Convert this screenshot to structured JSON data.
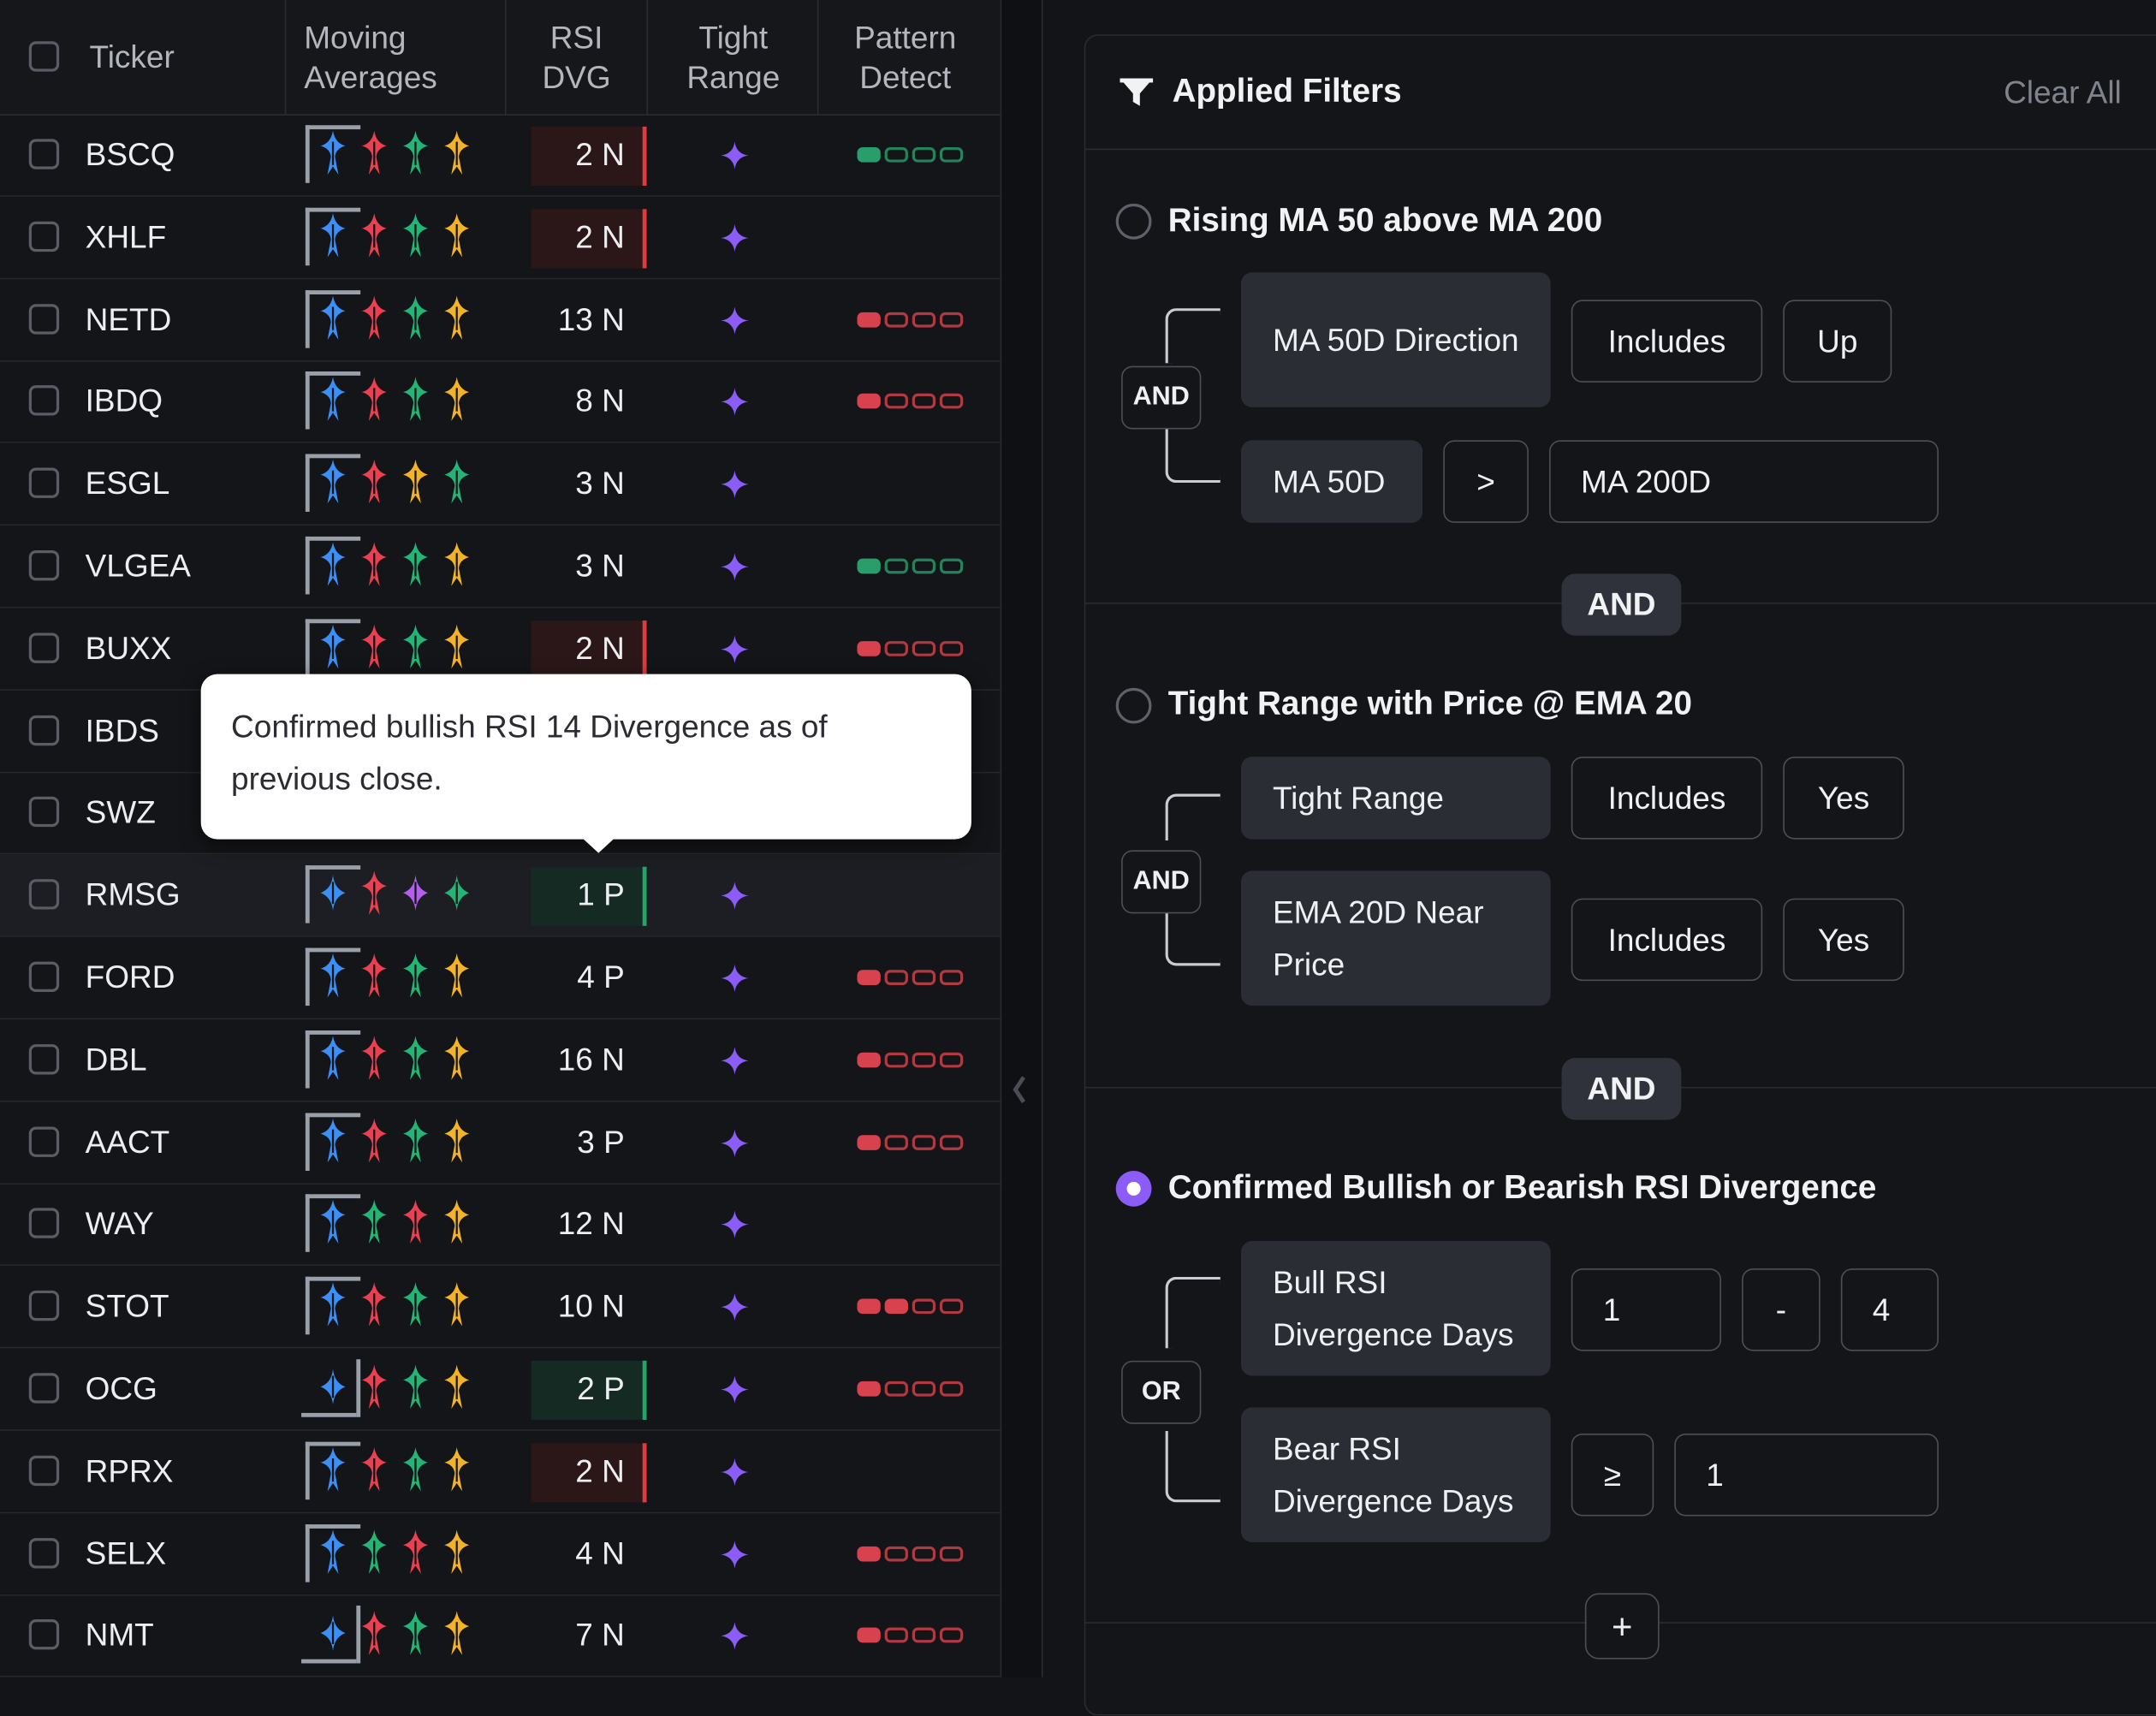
{
  "columns": {
    "ticker": "Ticker",
    "moving_averages": [
      "Moving",
      "Averages"
    ],
    "rsi_dvg": [
      "RSI",
      "DVG"
    ],
    "tight_range": [
      "Tight",
      "Range"
    ],
    "pattern_detect": [
      "Pattern",
      "Detect"
    ]
  },
  "colors": {
    "blue": "#3b8ff6",
    "red": "#ec3f4f",
    "green": "#22b574",
    "yellow": "#f4b227",
    "purple": "#b65cf0",
    "accent": "#8b5cf6",
    "neg_bg": "#2b1718",
    "pos_bg": "#152a22"
  },
  "rows": [
    {
      "ticker": "BSCQ",
      "ma_variant": "bracket",
      "ma": [
        "blue-up",
        "red-up",
        "green-up",
        "yellow-up"
      ],
      "rsi": "2 N",
      "rsi_style": "red",
      "tight": true,
      "pattern": {
        "color": "green",
        "filled": 1
      }
    },
    {
      "ticker": "XHLF",
      "ma_variant": "bracket",
      "ma": [
        "blue-up",
        "red-up",
        "green-up",
        "yellow-up"
      ],
      "rsi": "2 N",
      "rsi_style": "red",
      "tight": true,
      "pattern": null
    },
    {
      "ticker": "NETD",
      "ma_variant": "bracket",
      "ma": [
        "blue-up",
        "red-up",
        "green-up",
        "yellow-up"
      ],
      "rsi": "13 N",
      "rsi_style": "none",
      "tight": true,
      "pattern": {
        "color": "red",
        "filled": 1
      }
    },
    {
      "ticker": "IBDQ",
      "ma_variant": "bracket",
      "ma": [
        "blue-up",
        "red-up",
        "green-up",
        "yellow-up"
      ],
      "rsi": "8 N",
      "rsi_style": "none",
      "tight": true,
      "pattern": {
        "color": "red",
        "filled": 1
      }
    },
    {
      "ticker": "ESGL",
      "ma_variant": "bracket",
      "ma": [
        "blue-up",
        "red-up",
        "yellow-up",
        "green-up"
      ],
      "rsi": "3 N",
      "rsi_style": "none",
      "tight": true,
      "pattern": null
    },
    {
      "ticker": "VLGEA",
      "ma_variant": "bracket",
      "ma": [
        "blue-up",
        "red-up",
        "green-up",
        "yellow-up"
      ],
      "rsi": "3 N",
      "rsi_style": "none",
      "tight": true,
      "pattern": {
        "color": "green",
        "filled": 1
      }
    },
    {
      "ticker": "BUXX",
      "ma_variant": "bracket",
      "ma": [
        "blue-up",
        "red-up",
        "green-up",
        "yellow-up"
      ],
      "rsi": "2 N",
      "rsi_style": "red",
      "tight": true,
      "pattern": {
        "color": "red",
        "filled": 1
      }
    },
    {
      "ticker": "IBDS",
      "ma_variant": "hidden",
      "ma": [],
      "rsi": "",
      "rsi_style": "none",
      "tight": false,
      "pattern": null
    },
    {
      "ticker": "SWZ",
      "ma_variant": "hidden",
      "ma": [],
      "rsi": "",
      "rsi_style": "none",
      "tight": false,
      "pattern": null
    },
    {
      "ticker": "RMSG",
      "ma_variant": "bracket",
      "ma": [
        "blue-flat",
        "red-up",
        "purple-flat",
        "green-flat"
      ],
      "rsi": "1 P",
      "rsi_style": "green",
      "tight": true,
      "pattern": null,
      "highlight": true
    },
    {
      "ticker": "FORD",
      "ma_variant": "bracket",
      "ma": [
        "blue-up",
        "red-up",
        "green-up",
        "yellow-up"
      ],
      "rsi": "4 P",
      "rsi_style": "none",
      "tight": true,
      "pattern": {
        "color": "red",
        "filled": 1
      }
    },
    {
      "ticker": "DBL",
      "ma_variant": "bracket",
      "ma": [
        "blue-up",
        "red-up",
        "green-up",
        "yellow-up"
      ],
      "rsi": "16 N",
      "rsi_style": "none",
      "tight": true,
      "pattern": {
        "color": "red",
        "filled": 1
      }
    },
    {
      "ticker": "AACT",
      "ma_variant": "bracket",
      "ma": [
        "blue-up",
        "red-up",
        "green-up",
        "yellow-up"
      ],
      "rsi": "3 P",
      "rsi_style": "none",
      "tight": true,
      "pattern": {
        "color": "red",
        "filled": 1
      }
    },
    {
      "ticker": "WAY",
      "ma_variant": "bracket",
      "ma": [
        "blue-up",
        "green-up",
        "red-up",
        "yellow-up"
      ],
      "rsi": "12 N",
      "rsi_style": "none",
      "tight": true,
      "pattern": null
    },
    {
      "ticker": "STOT",
      "ma_variant": "bracket",
      "ma": [
        "blue-up",
        "red-up",
        "green-up",
        "yellow-up"
      ],
      "rsi": "10 N",
      "rsi_style": "none",
      "tight": true,
      "pattern": {
        "color": "red",
        "filled": 2
      }
    },
    {
      "ticker": "OCG",
      "ma_variant": "under",
      "ma": [
        "blue-flat",
        "red-up",
        "green-up",
        "yellow-up"
      ],
      "rsi": "2 P",
      "rsi_style": "green",
      "tight": true,
      "pattern": {
        "color": "red",
        "filled": 1
      }
    },
    {
      "ticker": "RPRX",
      "ma_variant": "bracket",
      "ma": [
        "blue-up",
        "red-up",
        "green-up",
        "yellow-up"
      ],
      "rsi": "2 N",
      "rsi_style": "red",
      "tight": true,
      "pattern": null
    },
    {
      "ticker": "SELX",
      "ma_variant": "bracket",
      "ma": [
        "blue-up",
        "green-up",
        "red-up",
        "yellow-up"
      ],
      "rsi": "4 N",
      "rsi_style": "none",
      "tight": true,
      "pattern": {
        "color": "red",
        "filled": 1
      }
    },
    {
      "ticker": "NMT",
      "ma_variant": "under",
      "ma": [
        "blue-flat",
        "red-up",
        "green-up",
        "yellow-up"
      ],
      "rsi": "7 N",
      "rsi_style": "none",
      "tight": true,
      "pattern": {
        "color": "red",
        "filled": 1
      }
    }
  ],
  "tooltip": {
    "text": "Confirmed bullish RSI 14 Divergence as of previous close."
  },
  "filters": {
    "title": "Applied Filters",
    "clear_all": "Clear All",
    "groups": [
      {
        "title": "Rising MA 50 above MA 200",
        "selected": false,
        "logic": "AND",
        "conditions": [
          {
            "label": "MA 50D Direction",
            "operator": "Includes",
            "value": "Up"
          },
          {
            "label": "MA 50D",
            "operator": ">",
            "value": "MA 200D"
          }
        ]
      },
      {
        "title": "Tight Range with Price @ EMA 20",
        "selected": false,
        "logic": "AND",
        "conditions": [
          {
            "label": "Tight Range",
            "operator": "Includes",
            "value": "Yes"
          },
          {
            "label": "EMA 20D Near Price",
            "operator": "Includes",
            "value": "Yes"
          }
        ]
      },
      {
        "title": "Confirmed Bullish or Bearish RSI Divergence",
        "selected": true,
        "logic": "OR",
        "conditions": [
          {
            "label": "Bull RSI Divergence Days",
            "min": "1",
            "separator": "-",
            "max": "4"
          },
          {
            "label": "Bear RSI Divergence Days",
            "operator": "≥",
            "value": "1"
          }
        ]
      }
    ],
    "joiners": [
      "AND",
      "AND"
    ],
    "add_label": "+"
  }
}
